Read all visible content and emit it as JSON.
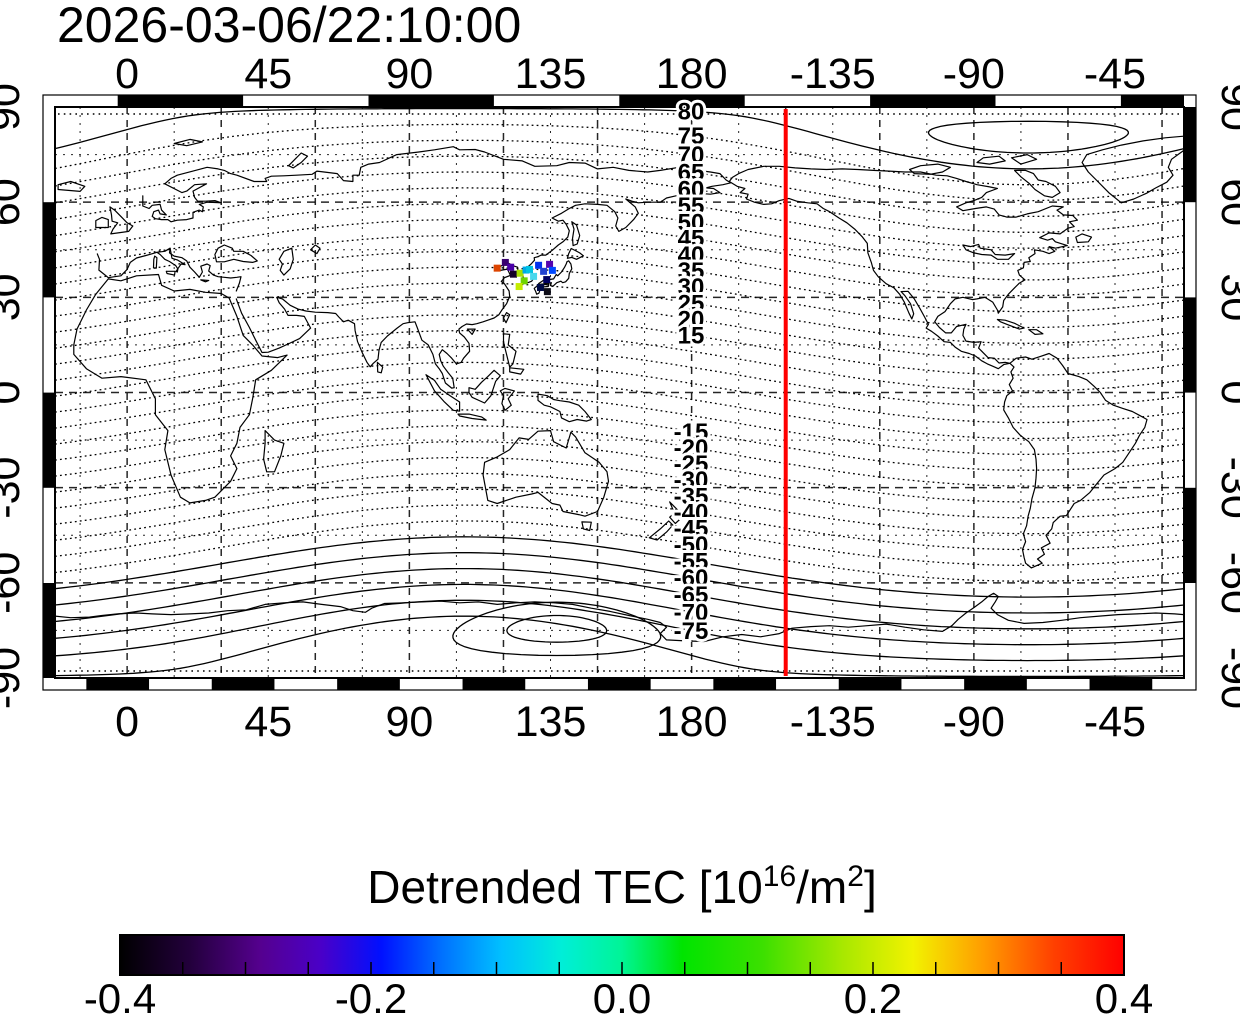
{
  "title": "2026-03-06/22:10:00",
  "map": {
    "top_axis_labels": [
      "0",
      "45",
      "90",
      "135",
      "180",
      "-135",
      "-90",
      "-45"
    ],
    "bottom_axis_labels": [
      "0",
      "45",
      "90",
      "135",
      "180",
      "-135",
      "-90",
      "-45"
    ],
    "left_axis_labels": [
      "90",
      "60",
      "30",
      "0",
      "-30",
      "-60",
      "-90"
    ],
    "right_axis_labels": [
      "90",
      "60",
      "30",
      "0",
      "-30",
      "-60",
      "-90"
    ]
  },
  "chart_data": {
    "type": "scatter",
    "title": "2026-03-06/22:10:00",
    "projection": "equirectangular",
    "lon_range": [
      -23,
      337
    ],
    "lat_range": [
      -90,
      90
    ],
    "grid_interval_deg": 15,
    "lon_tick_values": [
      0,
      45,
      90,
      135,
      180,
      -135,
      -90,
      -45
    ],
    "lat_tick_values": [
      90,
      60,
      30,
      0,
      -30,
      -60,
      -90
    ],
    "red_meridian_lon": -150,
    "red_meridian_color": "#FF0000",
    "magnetic_contours": {
      "interval_deg": 5,
      "label_longitude": 180,
      "labeled_values": [
        80,
        75,
        70,
        65,
        60,
        55,
        50,
        45,
        40,
        35,
        30,
        25,
        20,
        15,
        -15,
        -20,
        -25,
        -30,
        -35,
        -40,
        -45,
        -50,
        -55,
        -60,
        -65,
        -70,
        -75
      ]
    },
    "scatter_points": [
      {
        "lon": 118.0,
        "lat": 39.2,
        "value": 0.3,
        "color": "#DD4400"
      },
      {
        "lon": 120.6,
        "lat": 41.0,
        "value": -0.33,
        "color": "#38006E"
      },
      {
        "lon": 122.3,
        "lat": 39.5,
        "value": -0.3,
        "color": "#4A00A8"
      },
      {
        "lon": 123.2,
        "lat": 37.3,
        "value": -0.38,
        "color": "#140026"
      },
      {
        "lon": 125.3,
        "lat": 37.6,
        "value": 0.17,
        "color": "#A8E000"
      },
      {
        "lon": 126.6,
        "lat": 35.2,
        "value": 0.12,
        "color": "#6FD400"
      },
      {
        "lon": 125.0,
        "lat": 33.4,
        "value": 0.19,
        "color": "#C4EC00"
      },
      {
        "lon": 127.2,
        "lat": 38.6,
        "value": -0.08,
        "color": "#00A8E8"
      },
      {
        "lon": 128.3,
        "lat": 38.8,
        "value": -0.06,
        "color": "#00C4E4"
      },
      {
        "lon": 129.6,
        "lat": 36.6,
        "value": -0.04,
        "color": "#49D8EC"
      },
      {
        "lon": 131.2,
        "lat": 40.1,
        "value": -0.24,
        "color": "#0030EE"
      },
      {
        "lon": 132.8,
        "lat": 38.2,
        "value": -0.22,
        "color": "#2041D0"
      },
      {
        "lon": 133.8,
        "lat": 35.6,
        "value": -0.36,
        "color": "#000060"
      },
      {
        "lon": 134.7,
        "lat": 40.4,
        "value": -0.29,
        "color": "#5404B0"
      },
      {
        "lon": 135.6,
        "lat": 38.5,
        "value": -0.21,
        "color": "#0048FF"
      },
      {
        "lon": 131.8,
        "lat": 33.1,
        "value": -0.34,
        "color": "#000A46"
      },
      {
        "lon": 134.0,
        "lat": 31.8,
        "value": -0.39,
        "color": "#0D0D18"
      }
    ],
    "colorbar": {
      "title": "Detrended TEC",
      "title_prefix": "Detrended TEC  [10",
      "exp1": "16",
      "mid": "/m",
      "exp2": "2",
      "suffix": "]",
      "min": -0.4,
      "max": 0.4,
      "tick_values": [
        -0.4,
        -0.2,
        0.0,
        0.2,
        0.4
      ],
      "tick_labels": [
        "-0.4",
        "-0.2",
        "0.0",
        "0.2",
        "0.4"
      ],
      "minor_tick_interval": 0.05,
      "gradient_stops": [
        {
          "pos": 0.0,
          "color": "#000000"
        },
        {
          "pos": 0.07,
          "color": "#23003C"
        },
        {
          "pos": 0.14,
          "color": "#55008F"
        },
        {
          "pos": 0.2,
          "color": "#4A00C8"
        },
        {
          "pos": 0.26,
          "color": "#0010FF"
        },
        {
          "pos": 0.32,
          "color": "#0070FF"
        },
        {
          "pos": 0.38,
          "color": "#00C0FF"
        },
        {
          "pos": 0.44,
          "color": "#00EED8"
        },
        {
          "pos": 0.5,
          "color": "#00F596"
        },
        {
          "pos": 0.56,
          "color": "#00E400"
        },
        {
          "pos": 0.64,
          "color": "#3CE000"
        },
        {
          "pos": 0.72,
          "color": "#A8E800"
        },
        {
          "pos": 0.79,
          "color": "#F2F200"
        },
        {
          "pos": 0.86,
          "color": "#FF9C00"
        },
        {
          "pos": 0.93,
          "color": "#FF4000"
        },
        {
          "pos": 1.0,
          "color": "#FF0000"
        }
      ]
    }
  }
}
